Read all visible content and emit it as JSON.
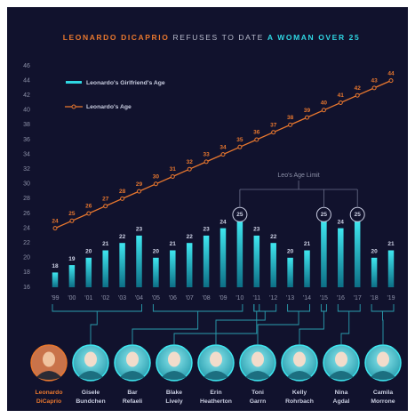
{
  "chart_data": {
    "type": "bar",
    "title_parts": [
      "LEONARDO DICAPRIO",
      "REFUSES TO DATE",
      "A WOMAN OVER 25"
    ],
    "annotation": "Leo's Age Limit",
    "categories": [
      "'99",
      "'00",
      "'01",
      "'02",
      "'03",
      "'04",
      "'05",
      "'06",
      "'07",
      "'08",
      "'09",
      "'10",
      "'11",
      "'12",
      "'13",
      "'14",
      "'15",
      "'16",
      "'17",
      "'18",
      "'19"
    ],
    "series": [
      {
        "name": "Leonardo's Girlfriend's Age",
        "type": "bar",
        "color": "#2fd6e2",
        "values": [
          18,
          19,
          20,
          21,
          22,
          23,
          20,
          21,
          22,
          23,
          24,
          25,
          23,
          22,
          20,
          21,
          25,
          24,
          25,
          20,
          21
        ]
      },
      {
        "name": "Leonardo's Age",
        "type": "line",
        "color": "#e8772e",
        "values": [
          24,
          25,
          26,
          27,
          28,
          29,
          30,
          31,
          32,
          33,
          34,
          35,
          36,
          37,
          38,
          39,
          40,
          41,
          42,
          43,
          44
        ]
      }
    ],
    "ylim": [
      16,
      46
    ],
    "yticks": [
      16,
      18,
      20,
      22,
      24,
      26,
      28,
      30,
      32,
      34,
      36,
      38,
      40,
      42,
      44,
      46
    ],
    "grid": false
  },
  "people": [
    {
      "name": [
        "Leonardo",
        "DiCaprio"
      ]
    },
    {
      "name": [
        "Gisele",
        "Bundchen"
      ]
    },
    {
      "name": [
        "Bar",
        "Refaeli"
      ]
    },
    {
      "name": [
        "Blake",
        "Lively"
      ]
    },
    {
      "name": [
        "Erin",
        "Heatherton"
      ]
    },
    {
      "name": [
        "Toni",
        "Garrn"
      ]
    },
    {
      "name": [
        "Kelly",
        "Rohrbach"
      ]
    },
    {
      "name": [
        "Nina",
        "Agdal"
      ]
    },
    {
      "name": [
        "Camila",
        "Morrone"
      ]
    }
  ]
}
